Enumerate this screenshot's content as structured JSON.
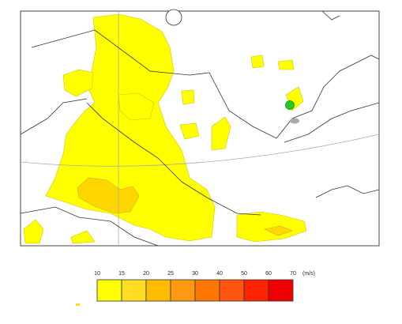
{
  "legend": {
    "ticks": [
      10,
      15,
      20,
      25,
      30,
      40,
      50,
      60,
      70
    ],
    "unit": "(m/s)",
    "colors": [
      "#ffff00",
      "#ffdd22",
      "#ffbb00",
      "#ff9911",
      "#ff7700",
      "#ff5511",
      "#ff2200",
      "#ee0000"
    ]
  }
}
